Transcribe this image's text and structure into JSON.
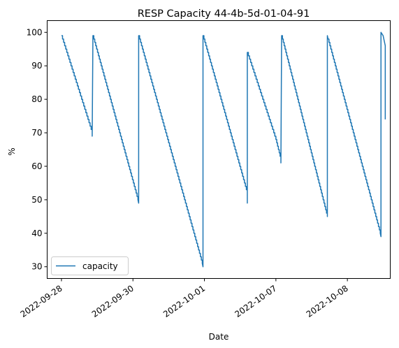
{
  "chart_data": {
    "type": "line",
    "title": "RESP Capacity 44-4b-5d-01-04-91",
    "xlabel": "Date",
    "ylabel": "%",
    "ylim": [
      26.5,
      103.5
    ],
    "yticks": [
      30,
      40,
      50,
      60,
      70,
      80,
      90,
      100
    ],
    "xticks": [
      "2022-09-28",
      "2022-09-30",
      "2022-10-01",
      "2022-10-07",
      "2022-10-08"
    ],
    "xlim_index": [
      -0.2,
      4.6
    ],
    "grid": false,
    "legend_position": "lower-left",
    "series": [
      {
        "name": "capacity",
        "color": "#1f77b4",
        "x_index": [
          0,
          0.43,
          0.43,
          0.44,
          1.07,
          1.08,
          1.08,
          1.97,
          1.98,
          1.98,
          2.6,
          2.6,
          2.6,
          3.0,
          3.07,
          3.07,
          3.08,
          3.72,
          3.72,
          3.73,
          4.46,
          4.47,
          4.47,
          4.5,
          4.52,
          4.53,
          4.53
        ],
        "values": [
          99,
          70,
          69,
          99,
          50,
          49,
          99,
          31,
          30,
          99,
          52,
          49,
          94,
          68,
          62,
          61,
          99,
          45,
          99,
          98,
          40,
          39,
          100,
          99,
          97,
          96,
          74
        ]
      }
    ]
  }
}
